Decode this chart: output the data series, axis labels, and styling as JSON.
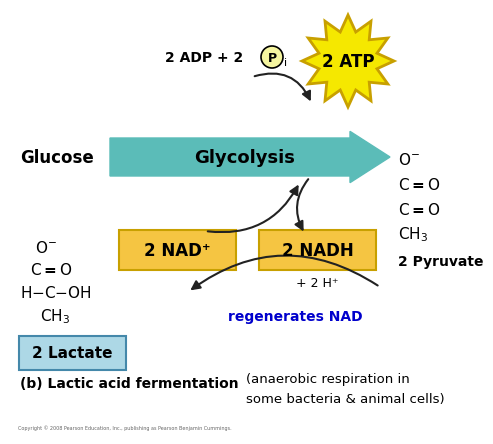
{
  "bg_color": "#ffffff",
  "glycolysis_arrow_color": "#5bbcb8",
  "nad_box_color": "#f5c542",
  "nad_box_edge": "#c8a000",
  "lactate_box_color": "#add8e6",
  "lactate_box_edge": "#4488aa",
  "atp_star_color": "#f5e800",
  "atp_star_edge": "#c8a000",
  "atp_text": "2 ATP",
  "nad_text": "2 NAD⁺",
  "nadh_text": "2 NADH",
  "nadh_sub": "+ 2 H⁺",
  "glucose_text": "Glucose",
  "pyruvate_text": "2 Pyruvate",
  "lactate_text": "2 Lactate",
  "regen_text": "regenerates NAD",
  "regen_color": "#0000cc",
  "lactic_text": "(b) Lactic acid fermentation",
  "anaerobic_line1": "(anaerobic respiration in",
  "anaerobic_line2": "some bacteria & animal cells)",
  "copyright_text": "Copyright © 2008 Pearson Education, Inc., publishing as Pearson Benjamin Cummings.",
  "arrow_color": "#222222"
}
